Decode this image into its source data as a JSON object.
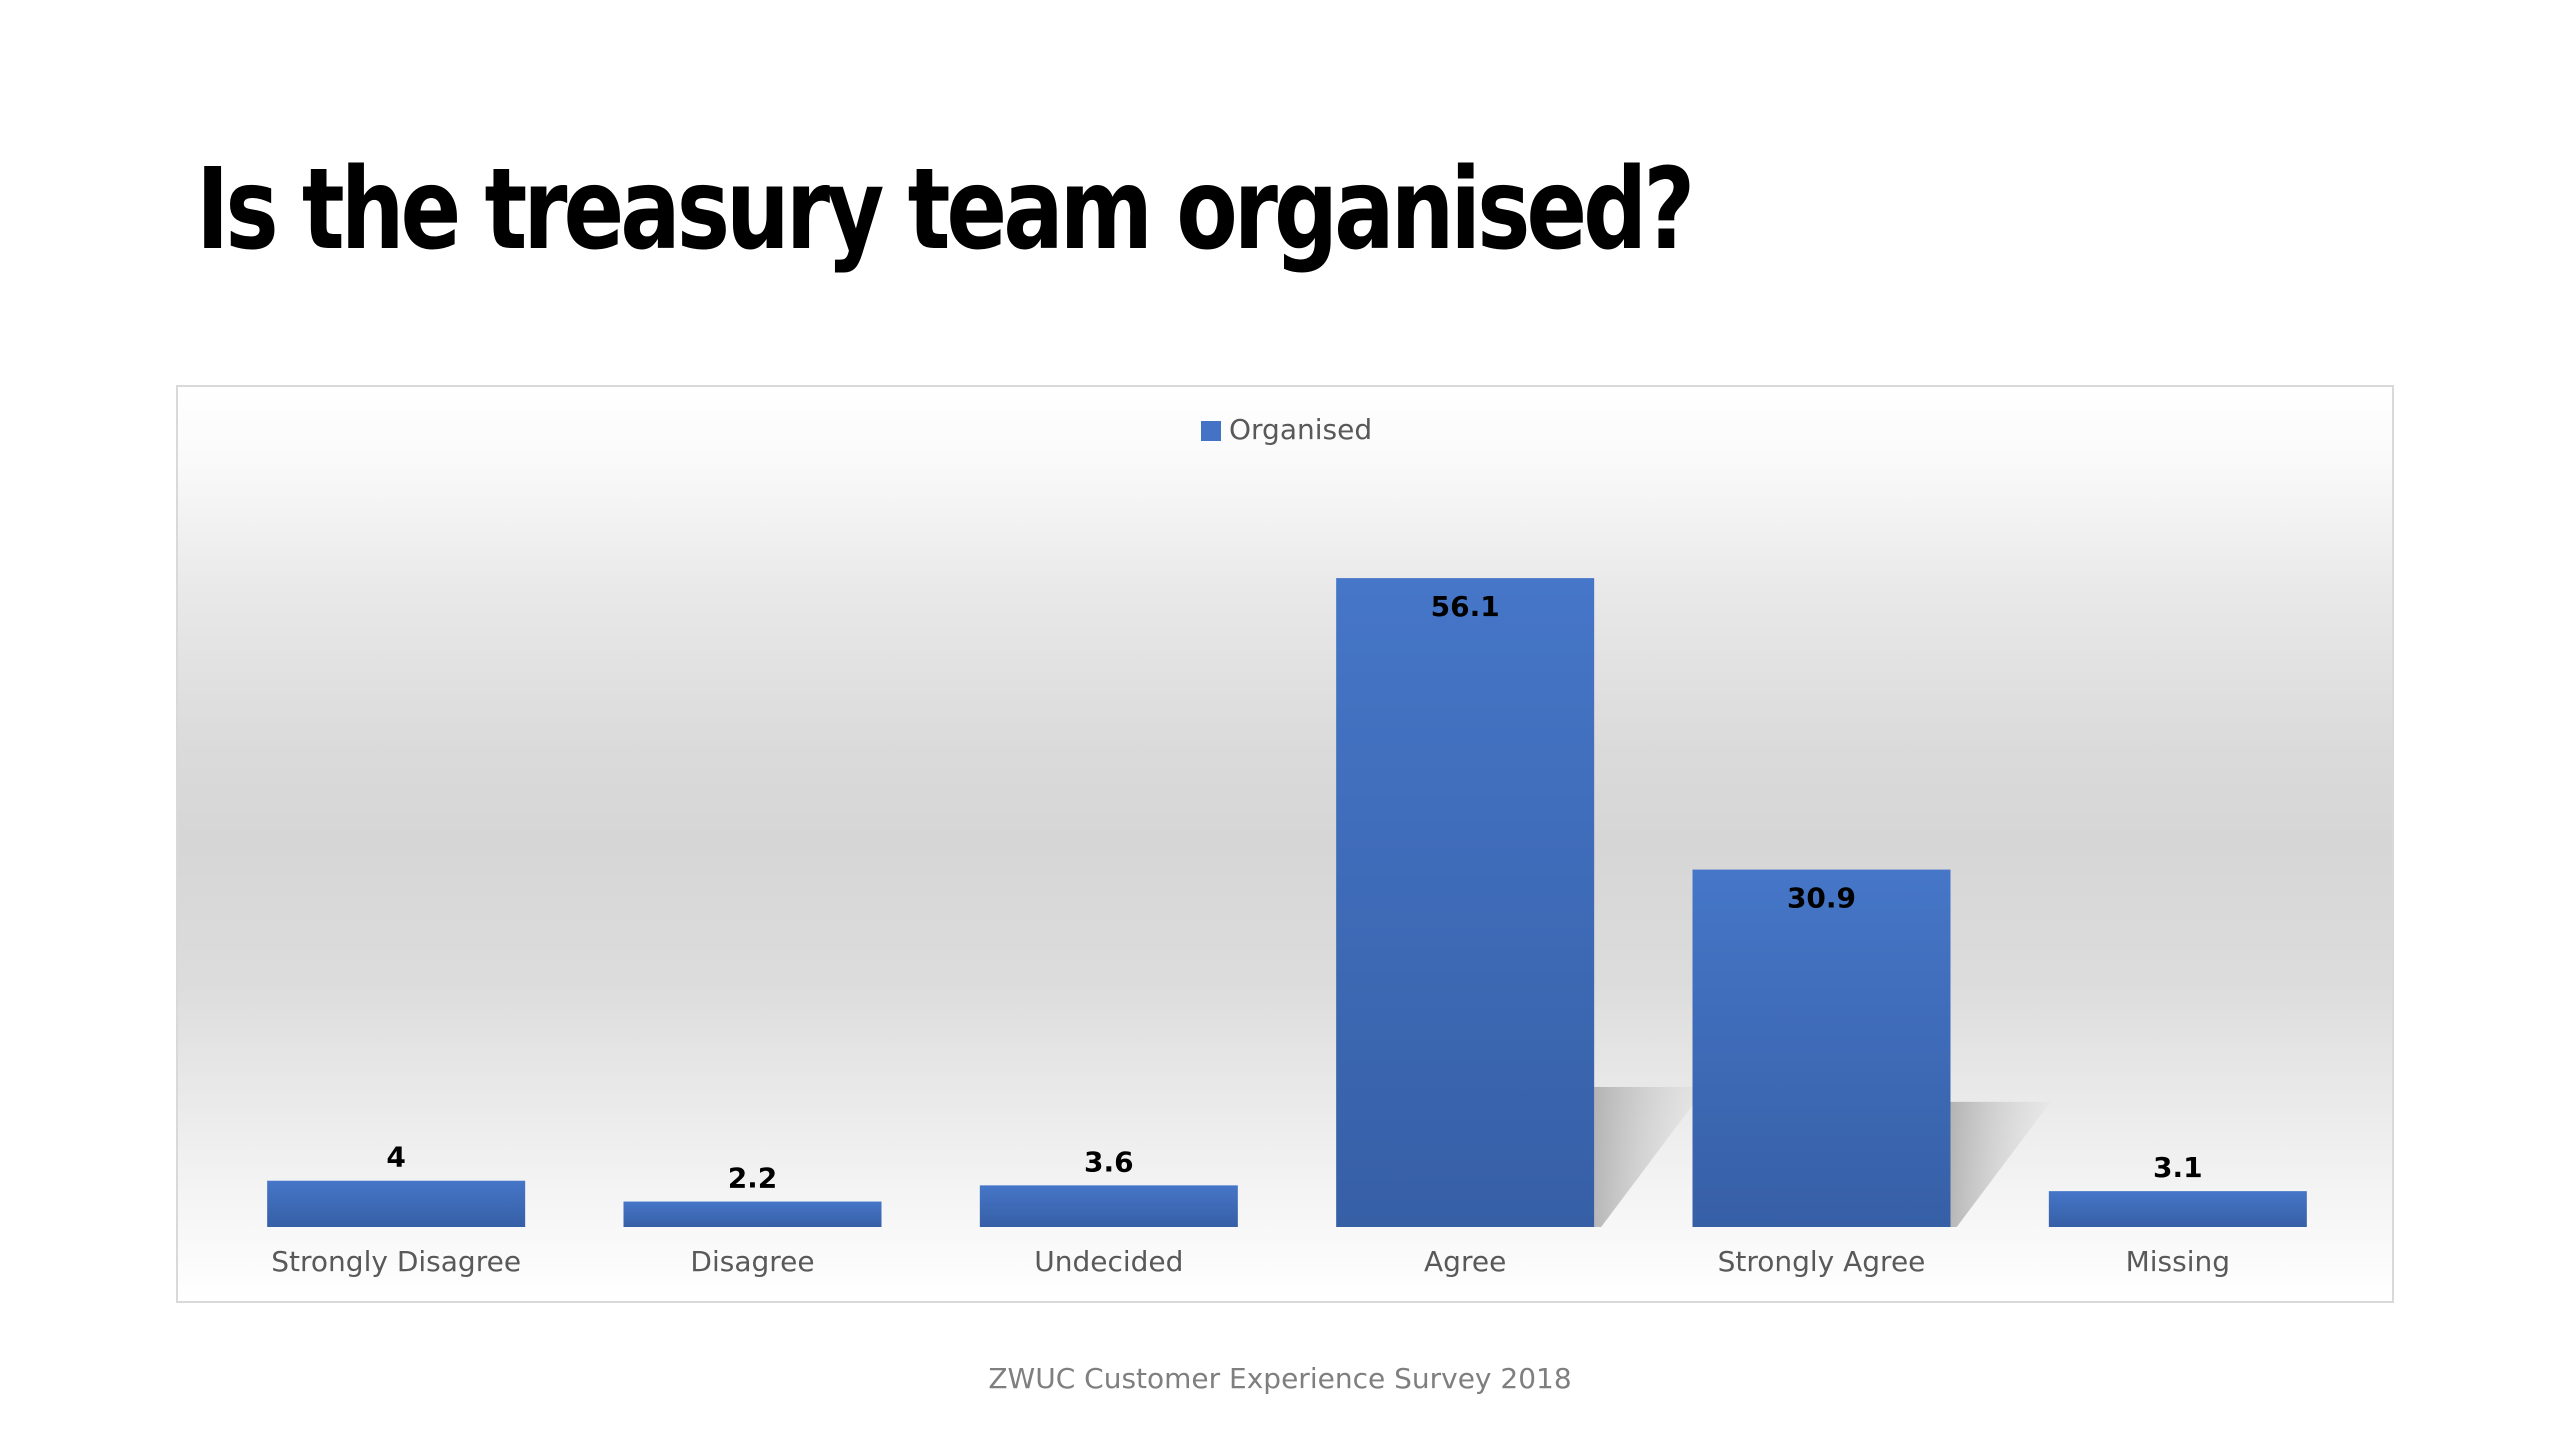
{
  "slide": {
    "title": "Is the treasury team organised?",
    "footer": "ZWUC Customer Experience Survey 2018"
  },
  "chart_data": {
    "type": "bar",
    "categories": [
      "Strongly Disagree",
      "Disagree",
      "Undecided",
      "Agree",
      "Strongly Agree",
      "Missing"
    ],
    "series": [
      {
        "name": "Organised",
        "values": [
          4,
          2.2,
          3.6,
          56.1,
          30.9,
          3.1
        ]
      }
    ],
    "data_labels": [
      "4",
      "2.2",
      "3.6",
      "56.1",
      "30.9",
      "3.1"
    ],
    "ylim": [
      0,
      60
    ],
    "legend": "top-center",
    "grid": false,
    "colors": {
      "bar": "#4472c4",
      "shadow": "#b0b0b0",
      "text": "#595959",
      "label": "#000000"
    }
  }
}
